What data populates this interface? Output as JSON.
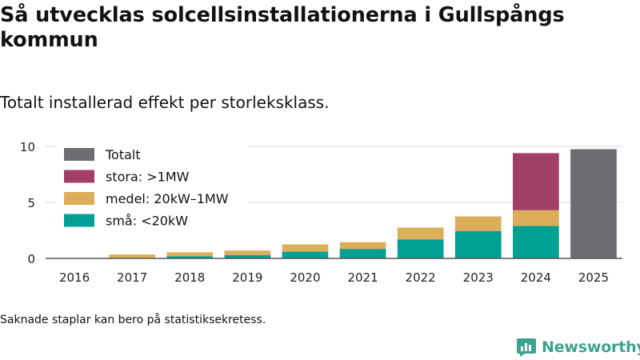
{
  "title": "Så utvecklas solcellsinstallationerna i Gullspångs kommun",
  "subtitle": "Totalt installerad effekt per storleksklass.",
  "footnote": "Saknade staplar kan bero på statistiksekretess.",
  "brand": {
    "name": "Newsworthy",
    "color": "#3fa391"
  },
  "chart_data": {
    "type": "bar",
    "stacked": true,
    "categories": [
      "2016",
      "2017",
      "2018",
      "2019",
      "2020",
      "2021",
      "2022",
      "2023",
      "2024",
      "2025"
    ],
    "series": [
      {
        "name": "små: <20kW",
        "color": "#00a194",
        "values": [
          0,
          0.05,
          0.2,
          0.3,
          0.6,
          0.85,
          1.7,
          2.45,
          2.9,
          0
        ]
      },
      {
        "name": "medel: 20kW–1MW",
        "color": "#dcae5a",
        "values": [
          0,
          0.3,
          0.35,
          0.4,
          0.65,
          0.6,
          1.05,
          1.3,
          1.4,
          0
        ]
      },
      {
        "name": "stora: >1MW",
        "color": "#a23f67",
        "values": [
          0,
          0,
          0,
          0,
          0,
          0,
          0,
          0,
          5.1,
          0
        ]
      },
      {
        "name": "Totalt",
        "color": "#6d6c70",
        "values": [
          0,
          0,
          0,
          0,
          0,
          0,
          0,
          0,
          0,
          9.75
        ]
      }
    ],
    "legend_order": [
      "Totalt",
      "stora: >1MW",
      "medel: 20kW–1MW",
      "små: <20kW"
    ],
    "yticks": [
      0,
      5,
      10
    ],
    "ylim": [
      0,
      10
    ],
    "xlabel": "",
    "ylabel": "",
    "grid": true,
    "legend_position": "top-left"
  }
}
